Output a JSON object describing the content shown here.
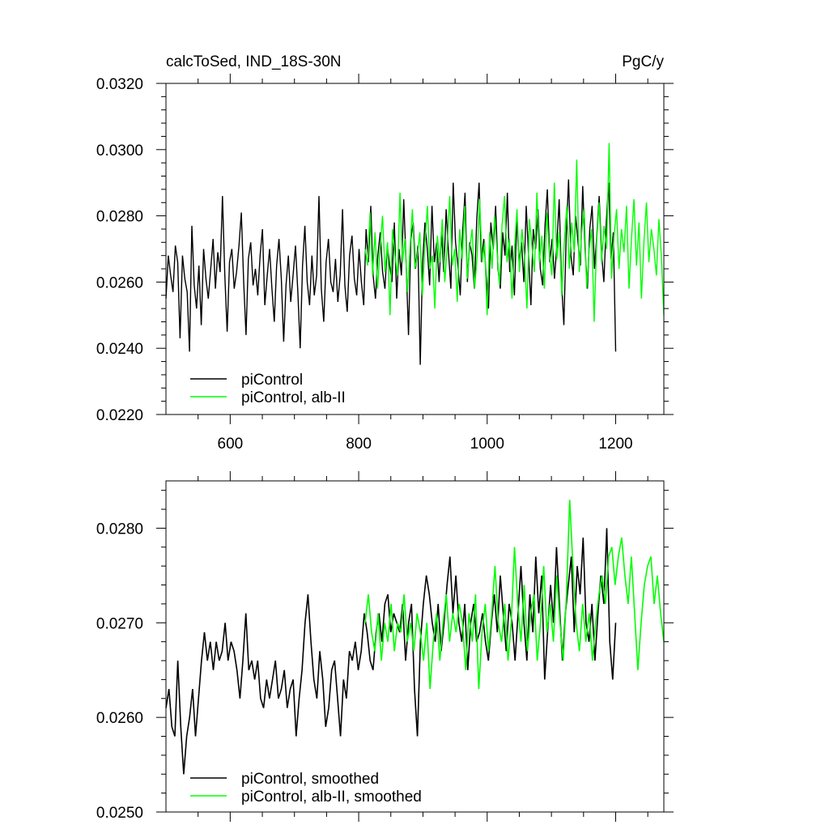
{
  "chart_data": [
    {
      "type": "line",
      "title": "calcToSed, IND_18S-30N",
      "units": "PgC/y",
      "xlabel": "",
      "ylabel": "",
      "xlim": [
        500,
        1275
      ],
      "ylim": [
        0.022,
        0.032
      ],
      "xticks": [
        600,
        800,
        1000,
        1200
      ],
      "xtick_labels": [
        "600",
        "800",
        "1000",
        "1200"
      ],
      "yticks": [
        0.022,
        0.024,
        0.026,
        0.028,
        0.03,
        0.032
      ],
      "ytick_labels": [
        "0.0220",
        "0.0240",
        "0.0260",
        "0.0280",
        "0.0300",
        "0.0320"
      ],
      "legend_position": "bottom-left",
      "series": [
        {
          "name": "piControl",
          "color": "#000000",
          "x_start": 500,
          "x_end": 1200,
          "values": [
            0.0255,
            0.0268,
            0.0262,
            0.0257,
            0.0271,
            0.0266,
            0.0243,
            0.0268,
            0.0261,
            0.0257,
            0.0239,
            0.0277,
            0.0259,
            0.0252,
            0.0265,
            0.0247,
            0.027,
            0.0261,
            0.0255,
            0.0264,
            0.0273,
            0.0258,
            0.0269,
            0.0263,
            0.0286,
            0.0262,
            0.0245,
            0.0266,
            0.027,
            0.0258,
            0.0263,
            0.0271,
            0.0281,
            0.026,
            0.0244,
            0.0267,
            0.0272,
            0.0259,
            0.0264,
            0.0256,
            0.0268,
            0.0276,
            0.0253,
            0.0262,
            0.027,
            0.0258,
            0.0248,
            0.0265,
            0.0273,
            0.0261,
            0.0242,
            0.0259,
            0.0268,
            0.0254,
            0.0262,
            0.0271,
            0.0257,
            0.024,
            0.0265,
            0.0277,
            0.026,
            0.0253,
            0.0268,
            0.0256,
            0.0262,
            0.0286,
            0.0258,
            0.0248,
            0.0266,
            0.0273,
            0.026,
            0.0257,
            0.0267,
            0.0254,
            0.0262,
            0.0282,
            0.0259,
            0.0251,
            0.0268,
            0.0274,
            0.0261,
            0.0256,
            0.027,
            0.026,
            0.0253,
            0.0276,
            0.0266,
            0.0283,
            0.0262,
            0.0255,
            0.0268,
            0.0275,
            0.0263,
            0.0258,
            0.0271,
            0.0265,
            0.026,
            0.0278,
            0.0255,
            0.027,
            0.0262,
            0.0285,
            0.0266,
            0.0244,
            0.0273,
            0.0278,
            0.0264,
            0.0271,
            0.0235,
            0.0266,
            0.0278,
            0.027,
            0.0259,
            0.0283,
            0.0266,
            0.0272,
            0.026,
            0.0275,
            0.0263,
            0.0282,
            0.0269,
            0.0258,
            0.029,
            0.0272,
            0.0265,
            0.0256,
            0.0275,
            0.0287,
            0.026,
            0.0272,
            0.0268,
            0.0258,
            0.0279,
            0.029,
            0.0266,
            0.0273,
            0.0262,
            0.0252,
            0.0278,
            0.027,
            0.0283,
            0.0264,
            0.0258,
            0.0275,
            0.0268,
            0.0287,
            0.0263,
            0.0271,
            0.0256,
            0.0279,
            0.0266,
            0.0272,
            0.026,
            0.0283,
            0.0268,
            0.0253,
            0.0276,
            0.027,
            0.0282,
            0.0264,
            0.0259,
            0.0277,
            0.0288,
            0.0266,
            0.0273,
            0.0261,
            0.0271,
            0.0285,
            0.026,
            0.0247,
            0.0274,
            0.0291,
            0.0268,
            0.0262,
            0.028,
            0.0272,
            0.0265,
            0.0289,
            0.027,
            0.0258,
            0.0276,
            0.0283,
            0.0264,
            0.0274,
            0.0286,
            0.0269,
            0.026,
            0.0278,
            0.029,
            0.0267,
            0.0275,
            0.0239
          ]
        },
        {
          "name": "piControl, alb-II",
          "color": "#00ff00",
          "x_start": 810,
          "x_end": 1275,
          "values": [
            0.027,
            0.0265,
            0.0281,
            0.0262,
            0.0275,
            0.0258,
            0.027,
            0.028,
            0.0263,
            0.0272,
            0.025,
            0.0276,
            0.0268,
            0.0262,
            0.0287,
            0.0266,
            0.0273,
            0.0257,
            0.027,
            0.0282,
            0.0264,
            0.0268,
            0.0275,
            0.0256,
            0.0271,
            0.0283,
            0.0264,
            0.0268,
            0.0252,
            0.0274,
            0.0266,
            0.0279,
            0.026,
            0.0271,
            0.0286,
            0.0265,
            0.027,
            0.0254,
            0.0276,
            0.0267,
            0.0283,
            0.0261,
            0.027,
            0.0276,
            0.0258,
            0.0268,
            0.0285,
            0.0266,
            0.0272,
            0.025,
            0.0275,
            0.0264,
            0.028,
            0.0269,
            0.0259,
            0.0277,
            0.0286,
            0.0266,
            0.0273,
            0.0255,
            0.027,
            0.0282,
            0.0263,
            0.0276,
            0.0268,
            0.0252,
            0.0279,
            0.0271,
            0.0263,
            0.0287,
            0.0266,
            0.0274,
            0.0258,
            0.0281,
            0.0269,
            0.0262,
            0.029,
            0.0267,
            0.0275,
            0.0256,
            0.0272,
            0.0283,
            0.0264,
            0.0278,
            0.0269,
            0.0297,
            0.0263,
            0.0275,
            0.0282,
            0.0258,
            0.027,
            0.0276,
            0.0248,
            0.0272,
            0.0284,
            0.0266,
            0.0277,
            0.027,
            0.0302,
            0.0261,
            0.0274,
            0.0282,
            0.0264,
            0.0276,
            0.0269,
            0.0283,
            0.0258,
            0.0273,
            0.0285,
            0.0265,
            0.0278,
            0.0255,
            0.0272,
            0.0284,
            0.0266,
            0.0276,
            0.027,
            0.0262,
            0.0279,
            0.0268,
            0.025
          ]
        }
      ]
    },
    {
      "type": "line",
      "title": "",
      "xlabel": "",
      "ylabel": "",
      "xlim": [
        500,
        1275
      ],
      "ylim": [
        0.025,
        0.0285
      ],
      "xticks": [
        600,
        800,
        1000,
        1200
      ],
      "yticks": [
        0.025,
        0.026,
        0.027,
        0.028
      ],
      "ytick_labels": [
        "0.0250",
        "0.0260",
        "0.0270",
        "0.0280"
      ],
      "legend_position": "bottom-left",
      "series": [
        {
          "name": "piControl, smoothed",
          "color": "#000000",
          "x_start": 500,
          "x_end": 1200,
          "values": [
            0.0261,
            0.0263,
            0.0259,
            0.0258,
            0.0266,
            0.0259,
            0.0254,
            0.0258,
            0.026,
            0.0263,
            0.0258,
            0.0262,
            0.0266,
            0.0269,
            0.0266,
            0.0268,
            0.0265,
            0.0268,
            0.0266,
            0.0267,
            0.027,
            0.0266,
            0.0268,
            0.0267,
            0.0265,
            0.0262,
            0.0266,
            0.0271,
            0.0265,
            0.0266,
            0.0264,
            0.0266,
            0.0262,
            0.0261,
            0.0264,
            0.0262,
            0.0264,
            0.0266,
            0.0262,
            0.0263,
            0.0265,
            0.0261,
            0.0263,
            0.0264,
            0.0258,
            0.0262,
            0.0265,
            0.027,
            0.0273,
            0.0268,
            0.0264,
            0.0262,
            0.0267,
            0.0264,
            0.0259,
            0.0261,
            0.0265,
            0.0266,
            0.0262,
            0.0258,
            0.0264,
            0.0262,
            0.0267,
            0.0266,
            0.0268,
            0.0265,
            0.0267,
            0.0271,
            0.0269,
            0.0266,
            0.0265,
            0.0269,
            0.0271,
            0.0268,
            0.0272,
            0.0273,
            0.0269,
            0.0271,
            0.027,
            0.0269,
            0.0272,
            0.0266,
            0.027,
            0.0272,
            0.0263,
            0.0258,
            0.0268,
            0.0272,
            0.0275,
            0.0273,
            0.027,
            0.0268,
            0.0272,
            0.0267,
            0.027,
            0.0274,
            0.0277,
            0.0271,
            0.0275,
            0.027,
            0.0268,
            0.0272,
            0.0265,
            0.027,
            0.0272,
            0.0268,
            0.0269,
            0.0271,
            0.0268,
            0.0266,
            0.027,
            0.0273,
            0.0269,
            0.0275,
            0.0271,
            0.0267,
            0.0272,
            0.027,
            0.0266,
            0.0271,
            0.0276,
            0.027,
            0.0266,
            0.0273,
            0.0269,
            0.0277,
            0.0271,
            0.0275,
            0.0264,
            0.0269,
            0.0274,
            0.027,
            0.0278,
            0.0272,
            0.0266,
            0.0271,
            0.0274,
            0.0277,
            0.0269,
            0.0276,
            0.0273,
            0.0279,
            0.027,
            0.0268,
            0.0272,
            0.0266,
            0.0271,
            0.0275,
            0.0272,
            0.028,
            0.0268,
            0.0264,
            0.027
          ]
        },
        {
          "name": "piControl, alb-II, smoothed",
          "color": "#00ff00",
          "x_start": 810,
          "x_end": 1275,
          "values": [
            0.027,
            0.0273,
            0.0269,
            0.0267,
            0.0271,
            0.0266,
            0.027,
            0.0268,
            0.0272,
            0.0267,
            0.027,
            0.0269,
            0.0273,
            0.0268,
            0.027,
            0.0267,
            0.0271,
            0.0269,
            0.0266,
            0.027,
            0.0263,
            0.0268,
            0.0271,
            0.0266,
            0.027,
            0.0273,
            0.0268,
            0.0271,
            0.0269,
            0.0272,
            0.027,
            0.0265,
            0.0271,
            0.0268,
            0.0273,
            0.0263,
            0.0269,
            0.0272,
            0.0267,
            0.0271,
            0.0276,
            0.027,
            0.0268,
            0.0272,
            0.0266,
            0.027,
            0.0278,
            0.0272,
            0.0268,
            0.0274,
            0.0267,
            0.0271,
            0.0273,
            0.0266,
            0.027,
            0.0276,
            0.0269,
            0.0272,
            0.0268,
            0.0275,
            0.027,
            0.0266,
            0.0273,
            0.0283,
            0.0276,
            0.027,
            0.0267,
            0.0272,
            0.0268,
            0.0271,
            0.0266,
            0.027,
            0.0273,
            0.0275,
            0.0272,
            0.0277,
            0.0278,
            0.0274,
            0.0277,
            0.0279,
            0.0275,
            0.0272,
            0.0277,
            0.0271,
            0.0265,
            0.027,
            0.0274,
            0.0276,
            0.0277,
            0.0272,
            0.0275,
            0.0271,
            0.0268
          ]
        }
      ]
    }
  ]
}
